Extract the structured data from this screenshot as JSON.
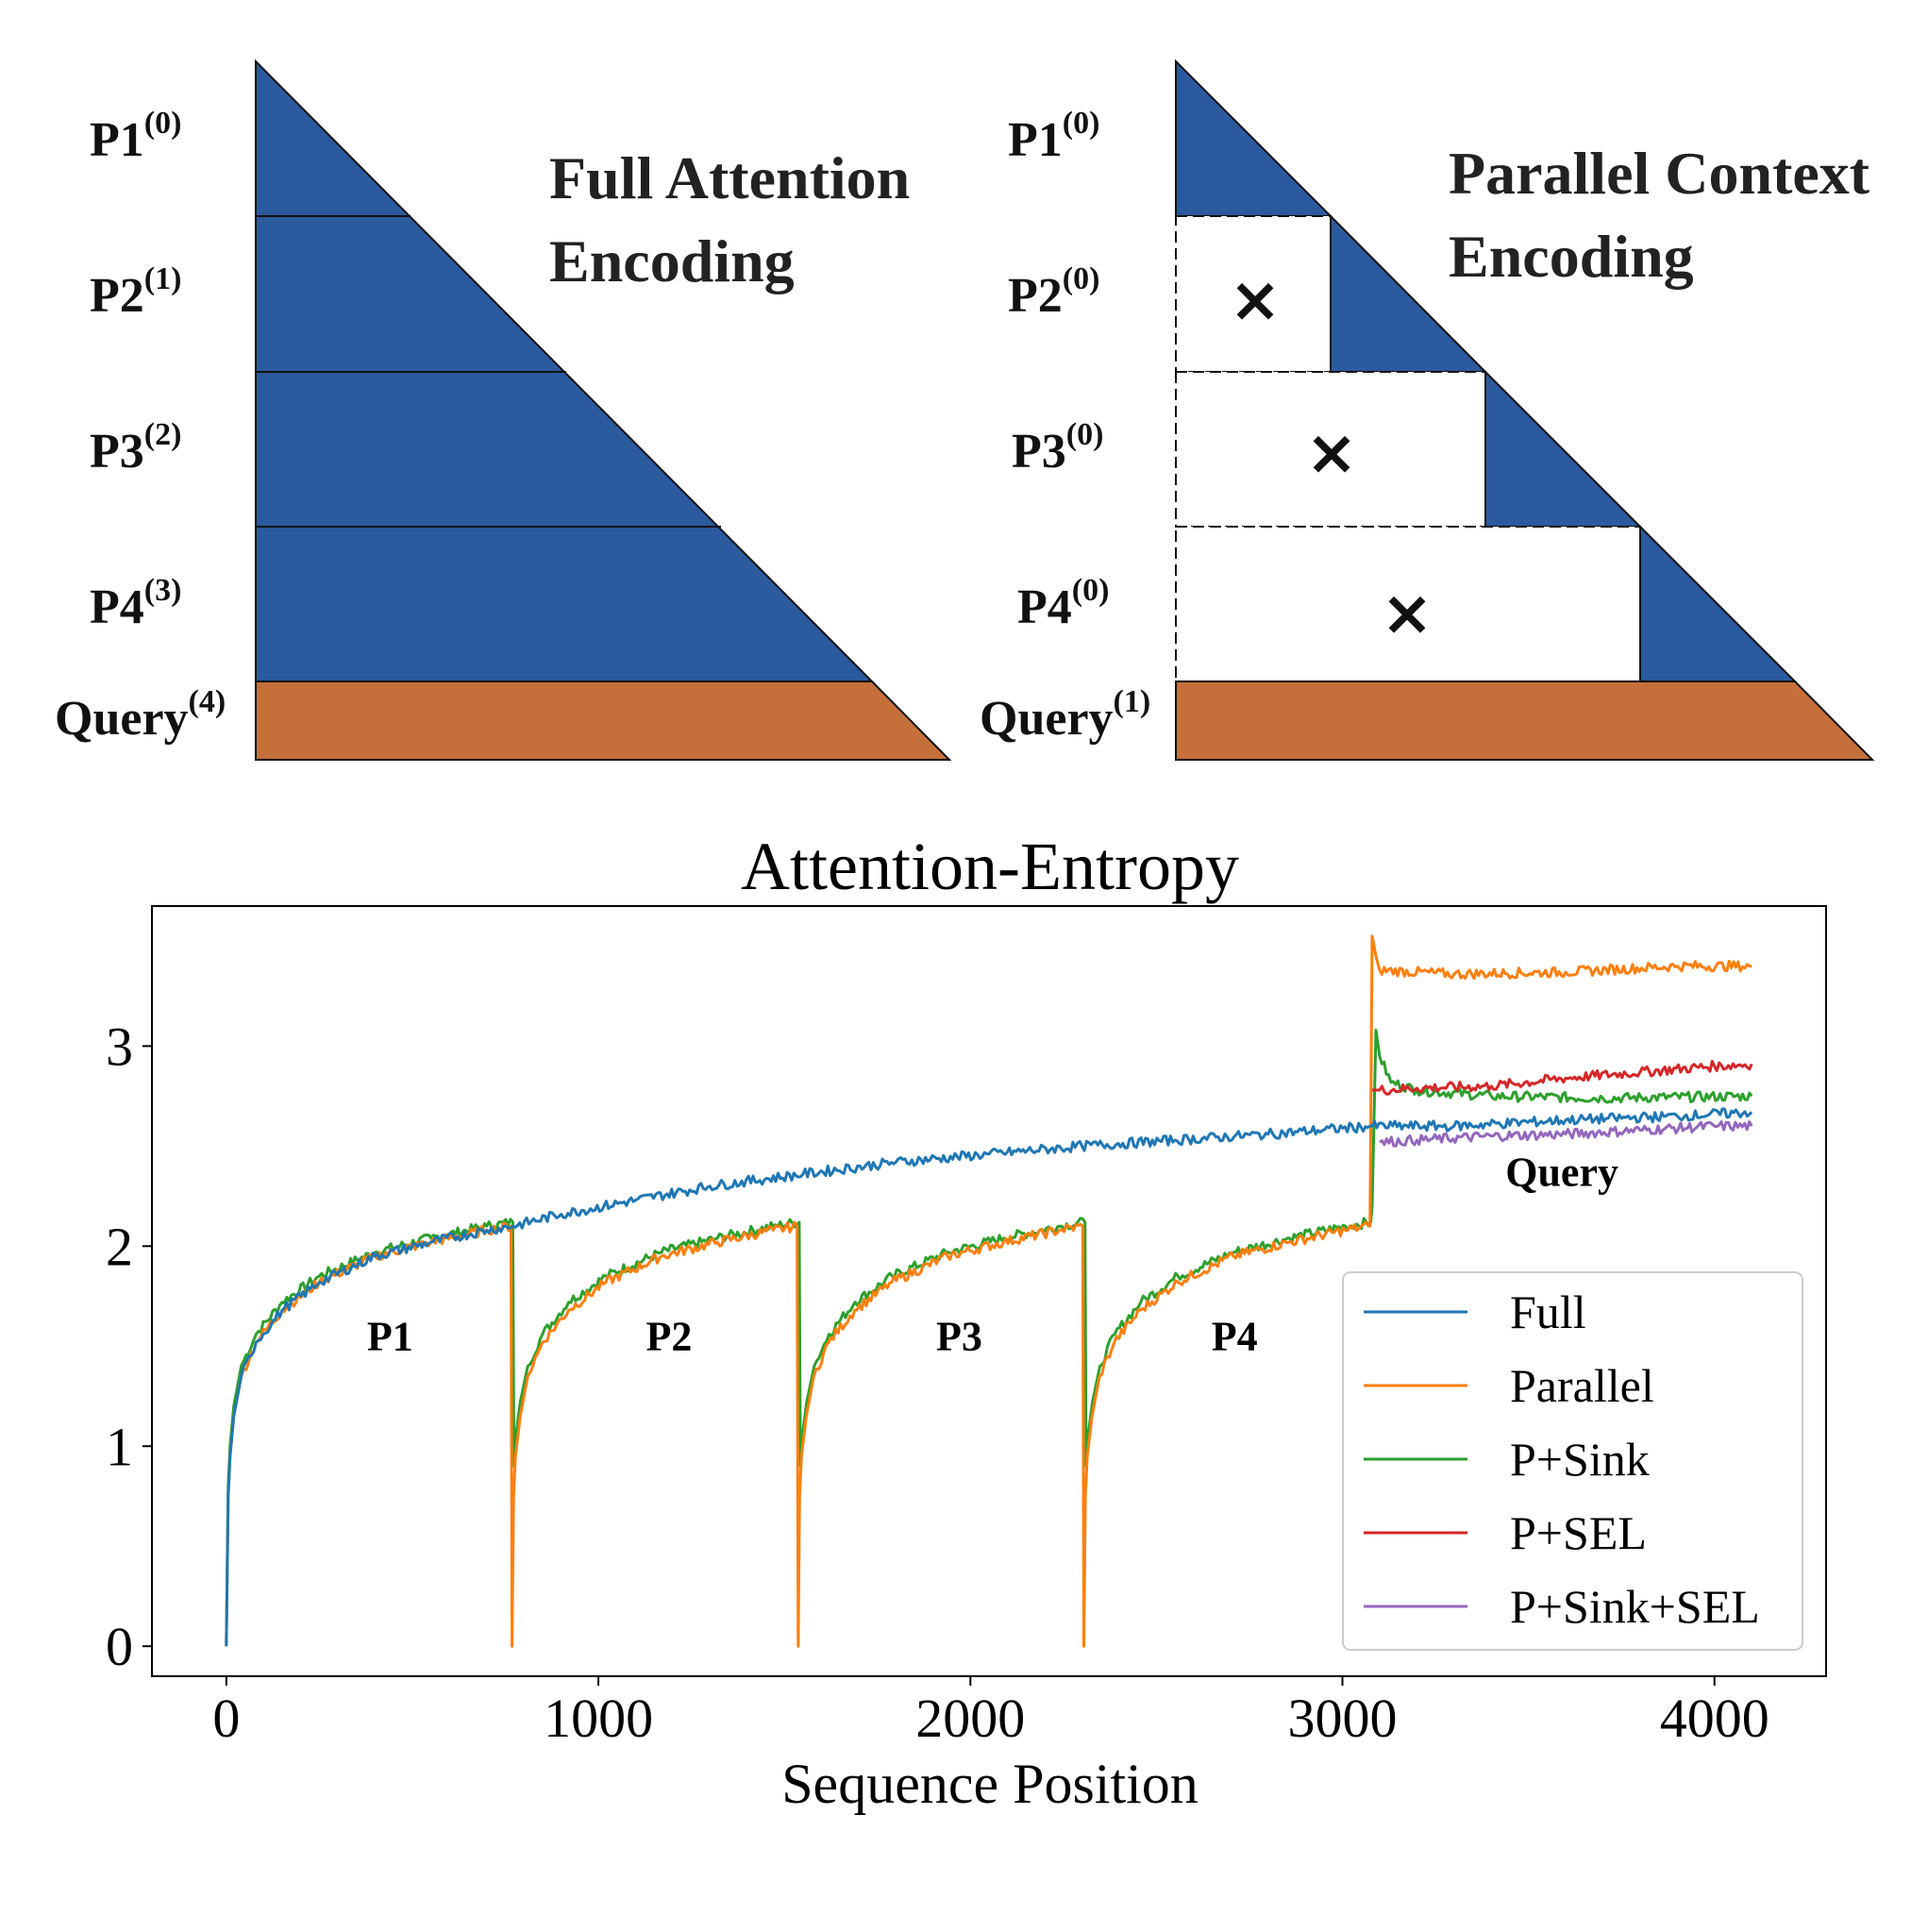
{
  "colors": {
    "block_blue": "#2c5a9e",
    "query_orange": "#c5703a"
  },
  "diagram_left": {
    "title_line1": "Full Attention",
    "title_line2": "Encoding",
    "rows": [
      {
        "name": "P1",
        "sup": "(0)"
      },
      {
        "name": "P2",
        "sup": "(1)"
      },
      {
        "name": "P3",
        "sup": "(2)"
      },
      {
        "name": "P4",
        "sup": "(3)"
      }
    ],
    "query": {
      "name": "Query",
      "sup": "(4)"
    }
  },
  "diagram_right": {
    "title_line1": "Parallel Context",
    "title_line2": "Encoding",
    "rows": [
      {
        "name": "P1",
        "sup": "(0)"
      },
      {
        "name": "P2",
        "sup": "(0)"
      },
      {
        "name": "P3",
        "sup": "(0)"
      },
      {
        "name": "P4",
        "sup": "(0)"
      }
    ],
    "query": {
      "name": "Query",
      "sup": "(1)"
    },
    "masked_mark": "×"
  },
  "chart_data": {
    "type": "line",
    "title": "Attention-Entropy",
    "xlabel": "Sequence Position",
    "ylabel": "",
    "xlim": [
      -200,
      4300
    ],
    "ylim": [
      -0.15,
      3.7
    ],
    "xticks": [
      0,
      1000,
      2000,
      3000,
      4000
    ],
    "yticks": [
      0,
      1,
      2,
      3
    ],
    "segment_labels": [
      {
        "text": "P1",
        "x": 440,
        "y": 1.48
      },
      {
        "text": "P2",
        "x": 1190,
        "y": 1.48
      },
      {
        "text": "P3",
        "x": 1970,
        "y": 1.48
      },
      {
        "text": "P4",
        "x": 2710,
        "y": 1.48
      },
      {
        "text": "Query",
        "x": 3590,
        "y": 2.3
      }
    ],
    "legend_position": "lower right",
    "grid": false,
    "series": [
      {
        "name": "Full",
        "color": "#1f77b4",
        "x": [
          0,
          5,
          10,
          20,
          40,
          80,
          150,
          250,
          400,
          550,
          700,
          770,
          900,
          1100,
          1300,
          1550,
          1800,
          2050,
          2300,
          2550,
          2800,
          3080,
          3300,
          3600,
          3900,
          4100
        ],
        "y": [
          0,
          0.75,
          0.95,
          1.15,
          1.35,
          1.52,
          1.68,
          1.82,
          1.95,
          2.02,
          2.08,
          2.1,
          2.16,
          2.23,
          2.3,
          2.36,
          2.42,
          2.46,
          2.5,
          2.53,
          2.56,
          2.6,
          2.6,
          2.63,
          2.65,
          2.67
        ]
      },
      {
        "name": "Parallel",
        "color": "#ff7f0e",
        "x": [
          0,
          5,
          10,
          20,
          40,
          80,
          150,
          250,
          400,
          550,
          700,
          765,
          768,
          772,
          777,
          790,
          810,
          850,
          920,
          1020,
          1170,
          1320,
          1470,
          1534,
          1537,
          1541,
          1546,
          1559,
          1579,
          1619,
          1689,
          1789,
          1939,
          2089,
          2239,
          2302,
          2305,
          2309,
          2314,
          2327,
          2347,
          2387,
          2457,
          2557,
          2707,
          2857,
          3007,
          3070,
          3074,
          3080,
          3090,
          3100,
          3300,
          3600,
          3900,
          4100
        ],
        "y": [
          0,
          0.75,
          0.95,
          1.15,
          1.35,
          1.52,
          1.68,
          1.82,
          1.95,
          2.02,
          2.08,
          2.1,
          0,
          0.75,
          0.95,
          1.15,
          1.35,
          1.52,
          1.68,
          1.82,
          1.95,
          2.02,
          2.08,
          2.1,
          0,
          0.75,
          0.95,
          1.15,
          1.35,
          1.52,
          1.68,
          1.82,
          1.95,
          2.02,
          2.08,
          2.1,
          0,
          0.75,
          0.95,
          1.15,
          1.35,
          1.52,
          1.68,
          1.82,
          1.95,
          2.02,
          2.08,
          2.1,
          2.1,
          3.55,
          3.45,
          3.38,
          3.36,
          3.37,
          3.4,
          3.4
        ]
      },
      {
        "name": "P+Sink",
        "color": "#2ca02c",
        "x": [
          0,
          5,
          10,
          20,
          40,
          80,
          150,
          250,
          400,
          550,
          700,
          770,
          773,
          778,
          790,
          810,
          850,
          920,
          1020,
          1170,
          1320,
          1470,
          1540,
          1543,
          1548,
          1560,
          1580,
          1620,
          1690,
          1790,
          1940,
          2090,
          2240,
          2308,
          2311,
          2316,
          2328,
          2348,
          2388,
          2458,
          2558,
          2708,
          2858,
          3008,
          3076,
          3080,
          3090,
          3100,
          3130,
          3200,
          3400,
          3700,
          4100
        ],
        "y": [
          0,
          0.8,
          1.0,
          1.2,
          1.4,
          1.56,
          1.72,
          1.85,
          1.97,
          2.04,
          2.1,
          2.12,
          0.9,
          1.05,
          1.22,
          1.4,
          1.56,
          1.72,
          1.85,
          1.97,
          2.04,
          2.1,
          2.12,
          0.9,
          1.05,
          1.22,
          1.4,
          1.56,
          1.72,
          1.85,
          1.97,
          2.04,
          2.1,
          2.12,
          0.9,
          1.05,
          1.22,
          1.4,
          1.56,
          1.72,
          1.85,
          1.97,
          2.04,
          2.1,
          2.12,
          2.2,
          3.08,
          2.95,
          2.82,
          2.78,
          2.75,
          2.74,
          2.75
        ]
      },
      {
        "name": "P+SEL",
        "color": "#d62728",
        "x": [
          3080,
          3100,
          3200,
          3400,
          3600,
          3800,
          4000,
          4100
        ],
        "y": [
          2.78,
          2.78,
          2.79,
          2.8,
          2.84,
          2.87,
          2.9,
          2.91
        ]
      },
      {
        "name": "P+Sink+SEL",
        "color": "#9467bd",
        "x": [
          3100,
          3200,
          3400,
          3600,
          3800,
          4000,
          4100
        ],
        "y": [
          2.52,
          2.53,
          2.55,
          2.56,
          2.58,
          2.6,
          2.6
        ]
      }
    ]
  }
}
